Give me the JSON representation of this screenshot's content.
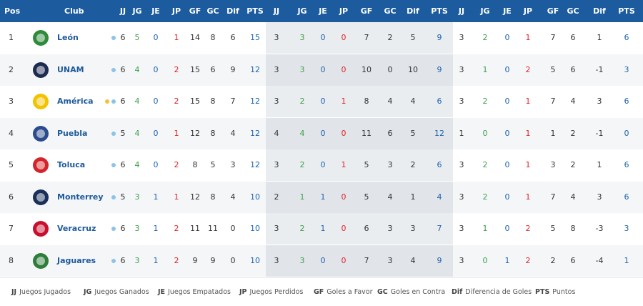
{
  "headers": [
    "Pos",
    "Club",
    "JJ",
    "JG",
    "JE",
    "JP",
    "GF",
    "GC",
    "Dif",
    "PTS",
    "JJ",
    "JG",
    "JE",
    "JP",
    "GF",
    "GC",
    "Dif",
    "PTS",
    "JJ",
    "JG",
    "JE",
    "JP",
    "GF",
    "GC",
    "Dif",
    "PTS"
  ],
  "rows": [
    {
      "pos": "1",
      "club": "León",
      "logo": "leon-logo-icon",
      "logo_color": "#2e8b3a",
      "dots": [
        "blue"
      ],
      "stats": [
        "6",
        "5",
        "0",
        "1",
        "14",
        "8",
        "6",
        "15",
        "3",
        "3",
        "0",
        "0",
        "7",
        "2",
        "5",
        "9",
        "3",
        "2",
        "0",
        "1",
        "7",
        "6",
        "1",
        "6"
      ]
    },
    {
      "pos": "2",
      "club": "UNAM",
      "logo": "unam-logo-icon",
      "logo_color": "#1d2b53",
      "dots": [
        "blue"
      ],
      "stats": [
        "6",
        "4",
        "0",
        "2",
        "15",
        "6",
        "9",
        "12",
        "3",
        "3",
        "0",
        "0",
        "10",
        "0",
        "10",
        "9",
        "3",
        "1",
        "0",
        "2",
        "5",
        "6",
        "-1",
        "3"
      ]
    },
    {
      "pos": "3",
      "club": "América",
      "logo": "america-logo-icon",
      "logo_color": "#f2c300",
      "dots": [
        "gold",
        "blue"
      ],
      "stats": [
        "6",
        "4",
        "0",
        "2",
        "15",
        "8",
        "7",
        "12",
        "3",
        "2",
        "0",
        "1",
        "8",
        "4",
        "4",
        "6",
        "3",
        "2",
        "0",
        "1",
        "7",
        "4",
        "3",
        "6"
      ]
    },
    {
      "pos": "4",
      "club": "Puebla",
      "logo": "puebla-logo-icon",
      "logo_color": "#2a4b8d",
      "dots": [
        "blue"
      ],
      "stats": [
        "5",
        "4",
        "0",
        "1",
        "12",
        "8",
        "4",
        "12",
        "4",
        "4",
        "0",
        "0",
        "11",
        "6",
        "5",
        "12",
        "1",
        "0",
        "0",
        "1",
        "1",
        "2",
        "-1",
        "0"
      ]
    },
    {
      "pos": "5",
      "club": "Toluca",
      "logo": "toluca-logo-icon",
      "logo_color": "#d4242b",
      "dots": [
        "blue"
      ],
      "stats": [
        "6",
        "4",
        "0",
        "2",
        "8",
        "5",
        "3",
        "12",
        "3",
        "2",
        "0",
        "1",
        "5",
        "3",
        "2",
        "6",
        "3",
        "2",
        "0",
        "1",
        "3",
        "2",
        "1",
        "6"
      ]
    },
    {
      "pos": "6",
      "club": "Monterrey",
      "logo": "monterrey-logo-icon",
      "logo_color": "#1a2f5a",
      "dots": [
        "blue"
      ],
      "stats": [
        "5",
        "3",
        "1",
        "1",
        "12",
        "8",
        "4",
        "10",
        "2",
        "1",
        "1",
        "0",
        "5",
        "4",
        "1",
        "4",
        "3",
        "2",
        "0",
        "1",
        "7",
        "4",
        "3",
        "6"
      ]
    },
    {
      "pos": "7",
      "club": "Veracruz",
      "logo": "veracruz-logo-icon",
      "logo_color": "#c8102e",
      "dots": [
        "blue"
      ],
      "stats": [
        "6",
        "3",
        "1",
        "2",
        "11",
        "11",
        "0",
        "10",
        "3",
        "2",
        "1",
        "0",
        "6",
        "3",
        "3",
        "7",
        "3",
        "1",
        "0",
        "2",
        "5",
        "8",
        "-3",
        "3"
      ]
    },
    {
      "pos": "8",
      "club": "Jaguares",
      "logo": "jaguares-logo-icon",
      "logo_color": "#2f7d3a",
      "dots": [
        "blue"
      ],
      "stats": [
        "6",
        "3",
        "1",
        "2",
        "9",
        "9",
        "0",
        "10",
        "3",
        "3",
        "0",
        "0",
        "7",
        "3",
        "4",
        "9",
        "3",
        "0",
        "1",
        "2",
        "2",
        "6",
        "-4",
        "1"
      ]
    }
  ],
  "legend": [
    {
      "abbr": "JJ",
      "text": "Juegos Jugados"
    },
    {
      "abbr": "JG",
      "text": "Juegos Ganados"
    },
    {
      "abbr": "JE",
      "text": "Juegos Empatados"
    },
    {
      "abbr": "JP",
      "text": "Juegos Perdidos"
    },
    {
      "abbr": "GF",
      "text": "Goles a Favor"
    },
    {
      "abbr": "GC",
      "text": "Goles en Contra"
    },
    {
      "abbr": "Dif",
      "text": "Diferencia de Goles"
    },
    {
      "abbr": "PTS",
      "text": "Puntos"
    }
  ],
  "colors": {
    "header_bg": "#1b5b9e",
    "club_text": "#1e5a9c",
    "won": "#3da14a",
    "drawn": "#1e64b0",
    "lost": "#e0262b",
    "dot_blue": "#8ac4ea",
    "dot_gold": "#f2c13a"
  }
}
